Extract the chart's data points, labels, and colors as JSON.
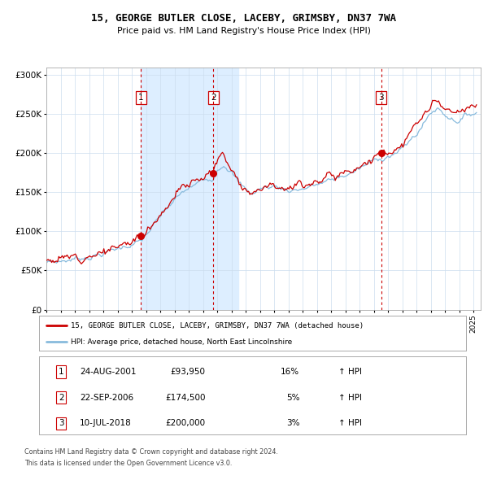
{
  "title": "15, GEORGE BUTLER CLOSE, LACEBY, GRIMSBY, DN37 7WA",
  "subtitle": "Price paid vs. HM Land Registry's House Price Index (HPI)",
  "background_color": "#ffffff",
  "plot_bg_color": "#ffffff",
  "grid_color": "#ccddee",
  "sale_line_color": "#cc0000",
  "hpi_line_color": "#88bbdd",
  "ylim": [
    0,
    310000
  ],
  "yticks": [
    0,
    50000,
    100000,
    150000,
    200000,
    250000,
    300000
  ],
  "ytick_labels": [
    "£0",
    "£50K",
    "£100K",
    "£150K",
    "£200K",
    "£250K",
    "£300K"
  ],
  "sale_dates": [
    2001.644,
    2006.726,
    2018.523
  ],
  "sale_prices": [
    93950,
    174500,
    200000
  ],
  "legend_sale_label": "15, GEORGE BUTLER CLOSE, LACEBY, GRIMSBY, DN37 7WA (detached house)",
  "legend_hpi_label": "HPI: Average price, detached house, North East Lincolnshire",
  "footer1": "Contains HM Land Registry data © Crown copyright and database right 2024.",
  "footer2": "This data is licensed under the Open Government Licence v3.0.",
  "shaded_region_color": "#ddeeff",
  "vline1_color": "#cc0000",
  "vline2_color": "#cc0000",
  "vline3_color": "#cc0000",
  "table_rows": [
    [
      "1",
      "24-AUG-2001",
      "£93,950",
      "16%",
      "↑ HPI"
    ],
    [
      "2",
      "22-SEP-2006",
      "£174,500",
      "5%",
      "↑ HPI"
    ],
    [
      "3",
      "10-JUL-2018",
      "£200,000",
      "3%",
      "↑ HPI"
    ]
  ]
}
